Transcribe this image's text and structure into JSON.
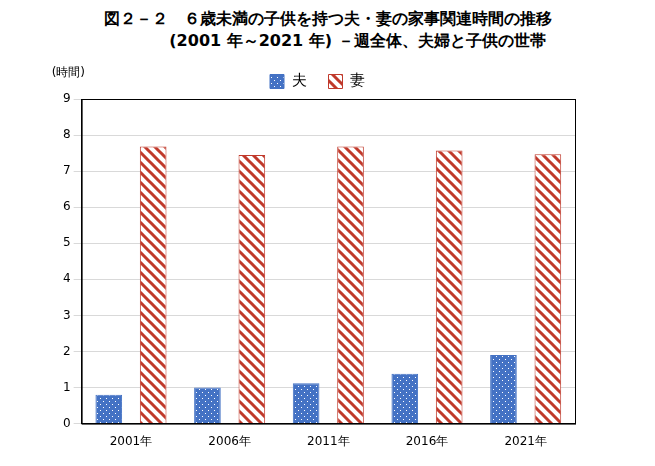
{
  "chart_data": {
    "type": "bar",
    "title": "図２－２　６歳未満の子供を持つ夫・妻の家事関連時間の推移",
    "subtitle": "(2001 年～2021 年) －週全体、夫婦と子供の世帯",
    "y_label": "(時間)",
    "categories": [
      "2001年",
      "2006年",
      "2011年",
      "2016年",
      "2021年"
    ],
    "series": [
      {
        "name": "夫",
        "color": "#4472c4",
        "values": [
          0.8,
          1.0,
          1.12,
          1.38,
          1.9
        ]
      },
      {
        "name": "妻",
        "color": "#c0392b",
        "values": [
          7.68,
          7.45,
          7.68,
          7.57,
          7.47
        ]
      }
    ],
    "ylim": [
      0,
      9
    ],
    "yticks": [
      0,
      1,
      2,
      3,
      4,
      5,
      6,
      7,
      8,
      9
    ],
    "grid": true,
    "legend": "top"
  }
}
